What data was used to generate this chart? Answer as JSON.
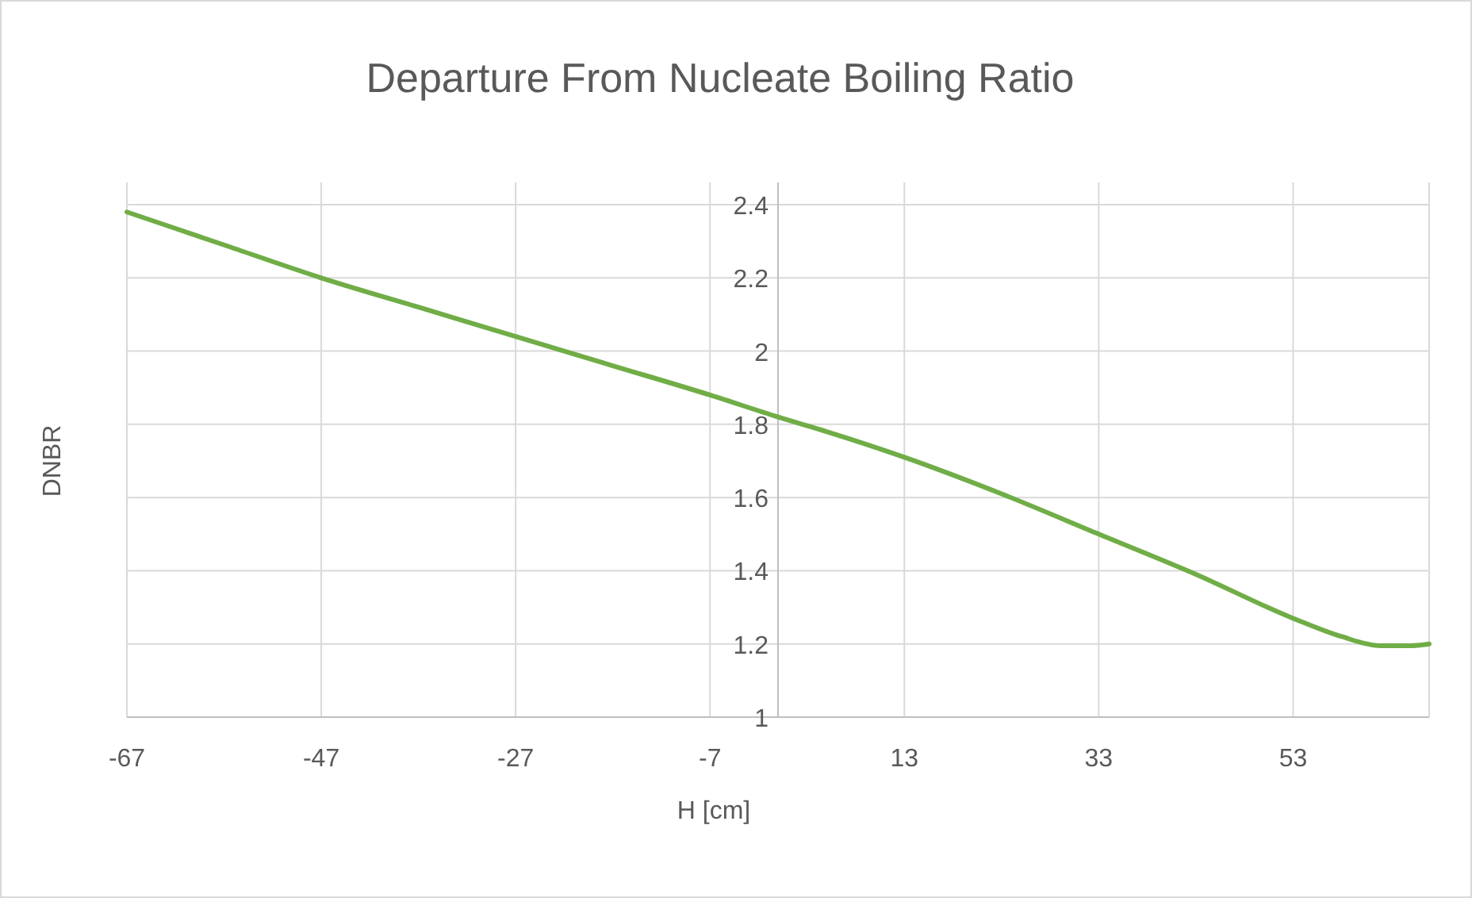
{
  "chart_data": {
    "type": "line",
    "title": "Departure From Nucleate Boiling Ratio",
    "xlabel": "H [cm]",
    "ylabel": "DNBR",
    "series": [
      {
        "color": "#70ad47",
        "x": [
          -67,
          -57,
          -47,
          -37,
          -27,
          -17,
          -7,
          0,
          5,
          13,
          23,
          33,
          43,
          53,
          58,
          62,
          65,
          67
        ],
        "values": [
          2.38,
          2.29,
          2.2,
          2.12,
          2.04,
          1.96,
          1.88,
          1.82,
          1.78,
          1.71,
          1.61,
          1.5,
          1.39,
          1.27,
          1.22,
          1.195,
          1.195,
          1.2
        ]
      }
    ],
    "xlim": [
      -67,
      67
    ],
    "xticks": [
      -67,
      -47,
      -27,
      -7,
      13,
      33,
      53
    ],
    "ylim": [
      1,
      2.4
    ],
    "yticks": [
      1,
      1.2,
      1.4,
      1.6,
      1.8,
      2,
      2.2,
      2.4
    ],
    "grid": true,
    "marker": "none",
    "line_style": "solid"
  }
}
